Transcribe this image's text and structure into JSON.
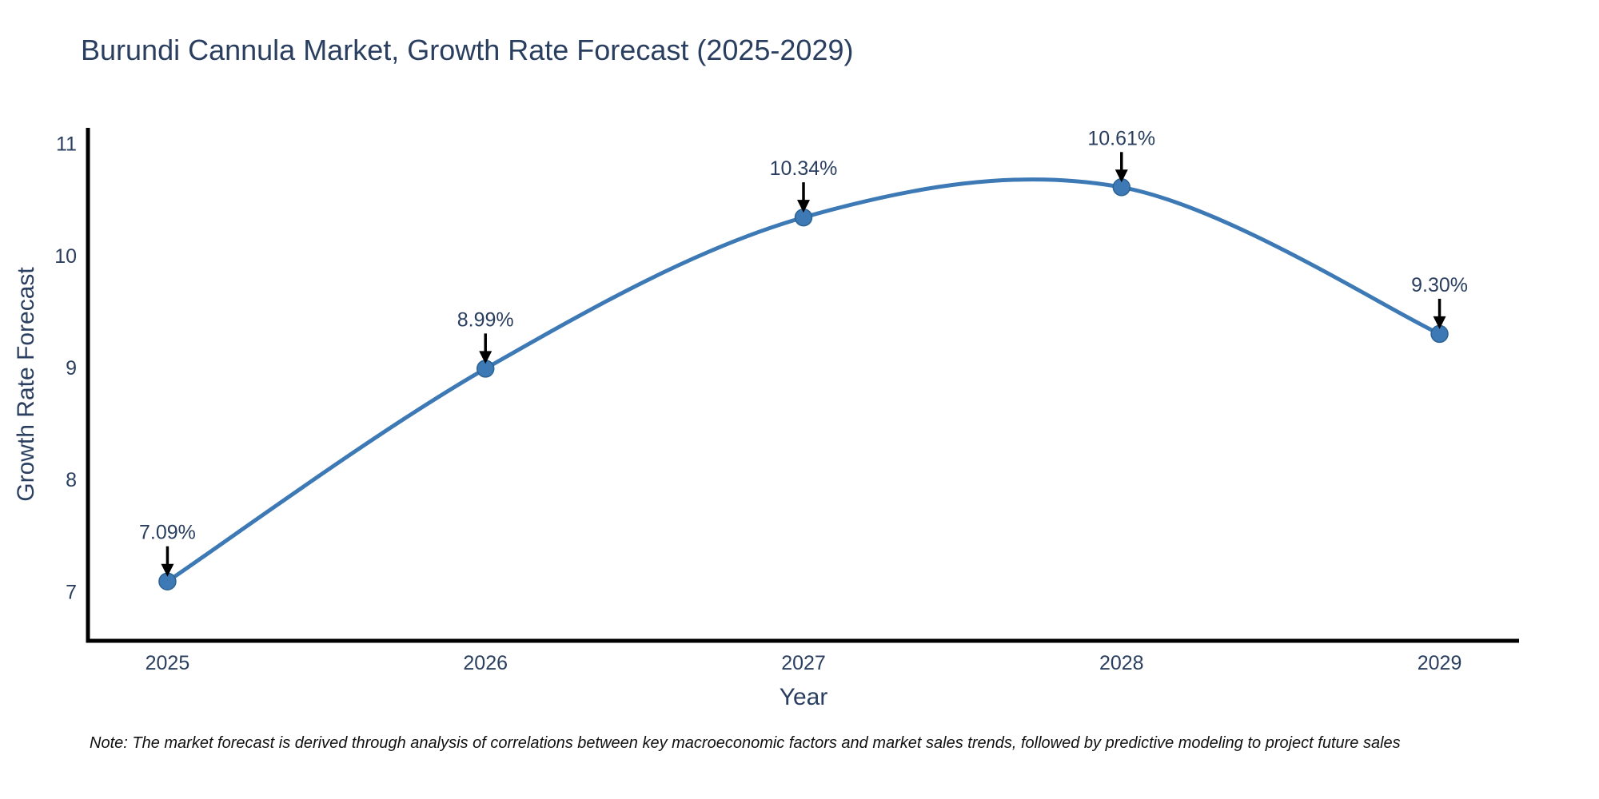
{
  "title": "Burundi Cannula Market, Growth Rate Forecast (2025-2029)",
  "note": "Note: The market forecast is derived through analysis of correlations between key macroeconomic factors and market sales trends, followed by predictive modeling to project future sales",
  "colors": {
    "accent_line": "#3d7ab5",
    "marker_fill": "#3d7ab5",
    "marker_stroke": "#2d6394",
    "text_dark": "#2a3f5f",
    "axis_line": "#000000",
    "arrow": "#000000",
    "background": "#ffffff"
  },
  "chart_data": {
    "type": "line",
    "title": "Burundi Cannula Market, Growth Rate Forecast (2025-2029)",
    "xlabel": "Year",
    "ylabel": "Growth Rate Forecast",
    "x": [
      2025,
      2026,
      2027,
      2028,
      2029
    ],
    "categories": [
      "2025",
      "2026",
      "2027",
      "2028",
      "2029"
    ],
    "series": [
      {
        "name": "Growth Rate Forecast",
        "values": [
          7.09,
          8.99,
          10.34,
          10.61,
          9.3
        ],
        "point_labels": [
          "7.09%",
          "8.99%",
          "10.34%",
          "10.61%",
          "9.30%"
        ]
      }
    ],
    "line_shape": "spline",
    "marker": "circle",
    "annotations_arrows": true,
    "xlim": [
      2024.75,
      2029.25
    ],
    "ylim": [
      6.56,
      11.14
    ],
    "yticks": [
      7,
      8,
      9,
      10,
      11
    ],
    "grid": false,
    "legend_position": "none"
  }
}
